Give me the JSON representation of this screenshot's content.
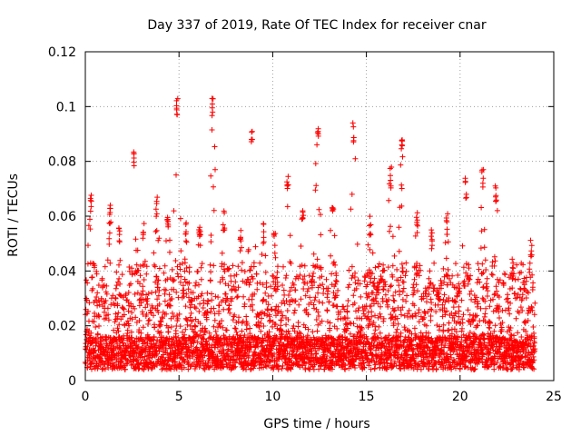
{
  "chart_data": {
    "type": "scatter",
    "title": "Day 337 of 2019, Rate Of TEC Index for receiver cnar",
    "xlabel": "GPS time / hours",
    "ylabel": "ROTI / TECUs",
    "xlim": [
      0,
      25
    ],
    "ylim": [
      0,
      0.12
    ],
    "x_ticks": [
      0,
      5,
      10,
      15,
      20,
      25
    ],
    "y_ticks": [
      0,
      0.02,
      0.04,
      0.06,
      0.08,
      0.1,
      0.12
    ],
    "x_tick_labels": [
      "0",
      "5",
      "10",
      "15",
      "20",
      "25"
    ],
    "y_tick_labels": [
      "0",
      "0.02",
      "0.04",
      "0.06",
      "0.08",
      "0.1",
      "0.12"
    ],
    "grid": true,
    "marker": "+",
    "color": "#ff0000",
    "data_range_x": [
      0,
      24
    ],
    "baseline_level": 0.01,
    "peaks": [
      {
        "x": 0.3,
        "y": 0.069
      },
      {
        "x": 1.3,
        "y": 0.065
      },
      {
        "x": 1.8,
        "y": 0.058
      },
      {
        "x": 2.6,
        "y": 0.086
      },
      {
        "x": 3.1,
        "y": 0.058
      },
      {
        "x": 3.8,
        "y": 0.067
      },
      {
        "x": 4.4,
        "y": 0.064
      },
      {
        "x": 4.9,
        "y": 0.104
      },
      {
        "x": 5.4,
        "y": 0.058
      },
      {
        "x": 6.1,
        "y": 0.056
      },
      {
        "x": 6.8,
        "y": 0.104
      },
      {
        "x": 7.4,
        "y": 0.062
      },
      {
        "x": 8.3,
        "y": 0.055
      },
      {
        "x": 8.9,
        "y": 0.092
      },
      {
        "x": 9.5,
        "y": 0.058
      },
      {
        "x": 10.1,
        "y": 0.054
      },
      {
        "x": 10.8,
        "y": 0.078
      },
      {
        "x": 11.6,
        "y": 0.062
      },
      {
        "x": 12.4,
        "y": 0.092
      },
      {
        "x": 13.2,
        "y": 0.066
      },
      {
        "x": 14.3,
        "y": 0.095
      },
      {
        "x": 15.2,
        "y": 0.061
      },
      {
        "x": 16.3,
        "y": 0.078
      },
      {
        "x": 16.9,
        "y": 0.088
      },
      {
        "x": 17.7,
        "y": 0.062
      },
      {
        "x": 18.5,
        "y": 0.055
      },
      {
        "x": 19.3,
        "y": 0.061
      },
      {
        "x": 20.3,
        "y": 0.074
      },
      {
        "x": 21.2,
        "y": 0.078
      },
      {
        "x": 21.9,
        "y": 0.072
      },
      {
        "x": 22.8,
        "y": 0.045
      },
      {
        "x": 23.8,
        "y": 0.052
      }
    ]
  }
}
